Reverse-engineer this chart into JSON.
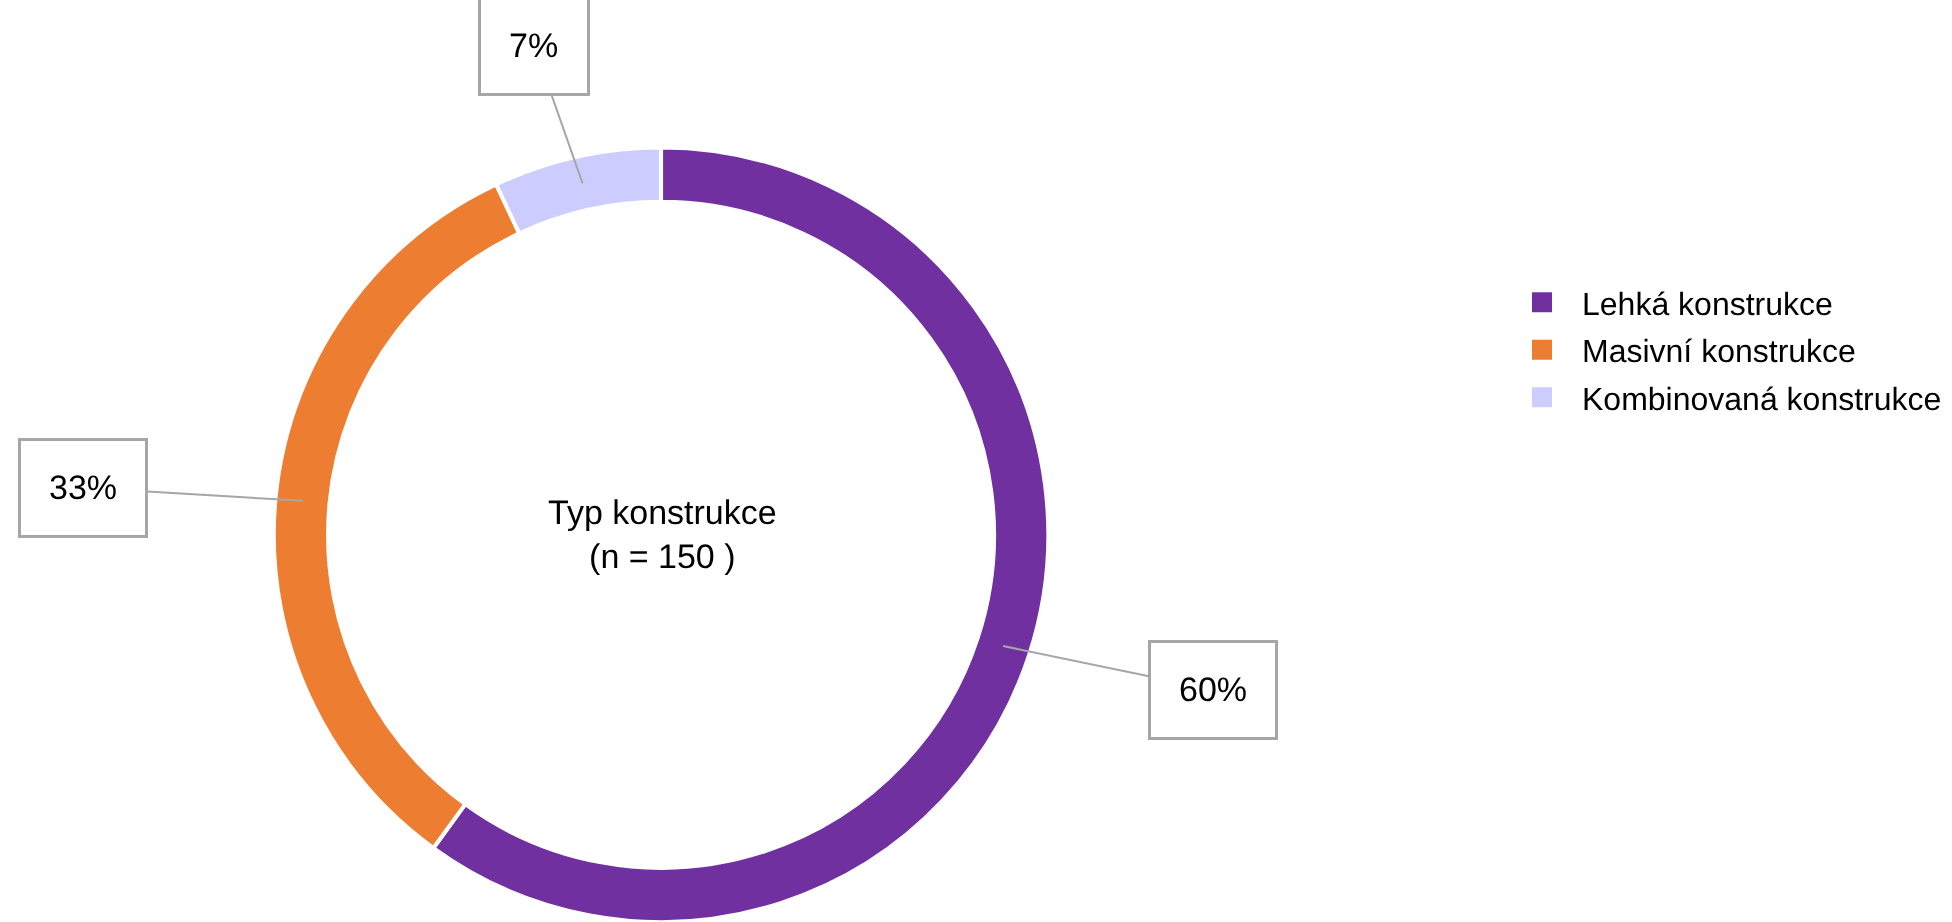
{
  "chart_data": {
    "type": "donut",
    "title": "Typ konstrukce",
    "subtitle": "(n = 150 )",
    "categories": [
      "Lehká konstrukce",
      "Masivní konstrukce",
      "Kombinovaná konstrukce"
    ],
    "values": [
      60,
      33,
      7
    ],
    "colors": [
      "#7030a0",
      "#ed7d31",
      "#ccccff"
    ],
    "value_labels": [
      "60%",
      "33%",
      "7%"
    ],
    "legend": "right"
  }
}
